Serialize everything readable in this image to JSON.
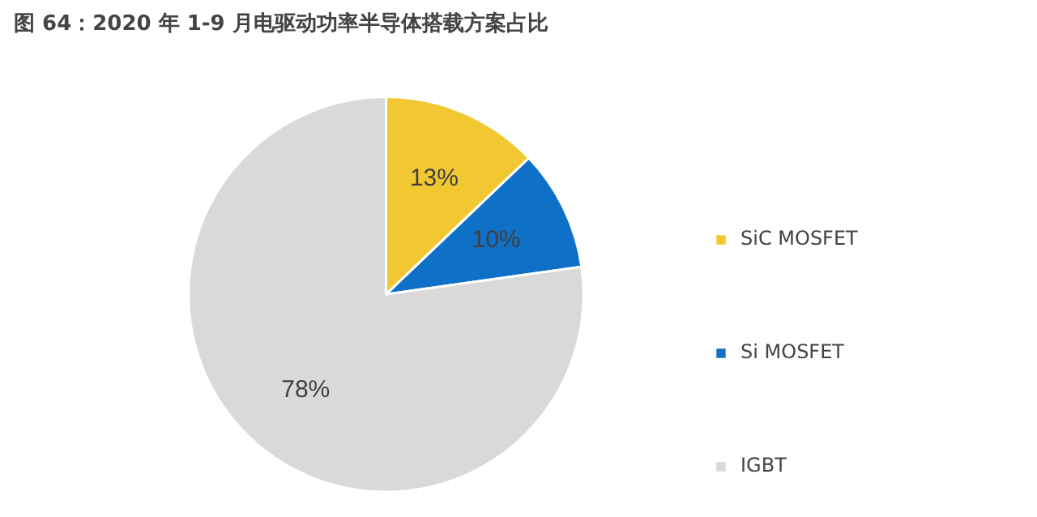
{
  "chart_data": {
    "type": "pie",
    "title": "图 64：2020 年 1-9 月电驱动功率半导体搭载方案占比",
    "categories": [
      "SiC MOSFET",
      "Si MOSFET",
      "IGBT"
    ],
    "values": [
      13,
      10,
      78
    ],
    "colors": [
      "#f2c832",
      "#0f70c8",
      "#d9d9d9"
    ],
    "value_labels": [
      "13%",
      "10%",
      "78%"
    ],
    "legend": "right"
  }
}
